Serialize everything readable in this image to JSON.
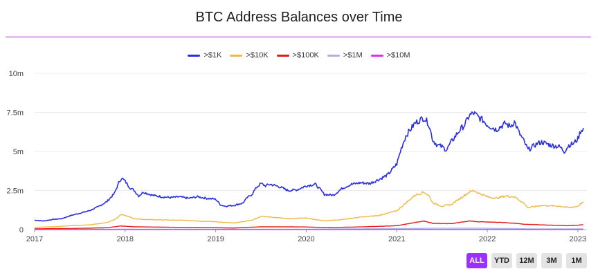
{
  "header": {
    "title": "BTC Address Balances over Time"
  },
  "legend": {
    "items": [
      {
        "label": ">$1K",
        "color": "#2a2ee0"
      },
      {
        "label": ">$10K",
        "color": "#f0b84a"
      },
      {
        "label": ">$100K",
        "color": "#e01b1b"
      },
      {
        "label": ">$1M",
        "color": "#b3aee8"
      },
      {
        "label": ">$10M",
        "color": "#d633e6"
      }
    ]
  },
  "range_buttons": {
    "items": [
      {
        "label": "ALL",
        "active": true
      },
      {
        "label": "YTD",
        "active": false
      },
      {
        "label": "12M",
        "active": false
      },
      {
        "label": "3M",
        "active": false
      },
      {
        "label": "1M",
        "active": false
      }
    ]
  },
  "chart_data": {
    "type": "line",
    "title": "BTC Address Balances over Time",
    "xlabel": "",
    "ylabel": "",
    "x_range": [
      2017.0,
      2023.1
    ],
    "x_ticks": [
      {
        "value": 2017,
        "label": "2017"
      },
      {
        "value": 2018,
        "label": "2018"
      },
      {
        "value": 2019,
        "label": "2019"
      },
      {
        "value": 2020,
        "label": "2020"
      },
      {
        "value": 2021,
        "label": "2021"
      },
      {
        "value": 2022,
        "label": "2022"
      },
      {
        "value": 2023,
        "label": "2023"
      }
    ],
    "ylim": [
      0,
      10000000
    ],
    "y_ticks": [
      {
        "value": 0,
        "label": "0"
      },
      {
        "value": 2500000,
        "label": "2.5m"
      },
      {
        "value": 5000000,
        "label": "5m"
      },
      {
        "value": 7500000,
        "label": "7.5m"
      },
      {
        "value": 10000000,
        "label": "10m"
      }
    ],
    "grid": "horizontal",
    "legend_position": "top",
    "series": [
      {
        "name": ">$1K",
        "color": "#2a2ee0",
        "points": [
          [
            2017.0,
            600000
          ],
          [
            2017.1,
            550000
          ],
          [
            2017.2,
            650000
          ],
          [
            2017.3,
            700000
          ],
          [
            2017.4,
            900000
          ],
          [
            2017.5,
            1050000
          ],
          [
            2017.6,
            1200000
          ],
          [
            2017.7,
            1450000
          ],
          [
            2017.8,
            1800000
          ],
          [
            2017.88,
            2300000
          ],
          [
            2017.93,
            3000000
          ],
          [
            2017.96,
            3300000
          ],
          [
            2018.0,
            3100000
          ],
          [
            2018.05,
            2700000
          ],
          [
            2018.1,
            2500000
          ],
          [
            2018.15,
            2150000
          ],
          [
            2018.2,
            2400000
          ],
          [
            2018.3,
            2200000
          ],
          [
            2018.4,
            2100000
          ],
          [
            2018.5,
            2050000
          ],
          [
            2018.6,
            2100000
          ],
          [
            2018.7,
            2000000
          ],
          [
            2018.8,
            2100000
          ],
          [
            2018.9,
            2000000
          ],
          [
            2019.0,
            1950000
          ],
          [
            2019.05,
            1600000
          ],
          [
            2019.1,
            1500000
          ],
          [
            2019.2,
            1550000
          ],
          [
            2019.3,
            1700000
          ],
          [
            2019.35,
            2050000
          ],
          [
            2019.4,
            2250000
          ],
          [
            2019.45,
            2700000
          ],
          [
            2019.5,
            2950000
          ],
          [
            2019.55,
            2800000
          ],
          [
            2019.6,
            2900000
          ],
          [
            2019.7,
            2750000
          ],
          [
            2019.8,
            2500000
          ],
          [
            2019.9,
            2550000
          ],
          [
            2020.0,
            2800000
          ],
          [
            2020.1,
            2900000
          ],
          [
            2020.15,
            2600000
          ],
          [
            2020.2,
            2250000
          ],
          [
            2020.3,
            2200000
          ],
          [
            2020.4,
            2650000
          ],
          [
            2020.5,
            2900000
          ],
          [
            2020.6,
            3000000
          ],
          [
            2020.7,
            2950000
          ],
          [
            2020.8,
            3200000
          ],
          [
            2020.9,
            3500000
          ],
          [
            2021.0,
            4200000
          ],
          [
            2021.05,
            5200000
          ],
          [
            2021.1,
            6000000
          ],
          [
            2021.15,
            6400000
          ],
          [
            2021.2,
            6800000
          ],
          [
            2021.25,
            7000000
          ],
          [
            2021.3,
            7150000
          ],
          [
            2021.35,
            6800000
          ],
          [
            2021.4,
            5700000
          ],
          [
            2021.45,
            5400000
          ],
          [
            2021.5,
            5300000
          ],
          [
            2021.55,
            5100000
          ],
          [
            2021.6,
            5600000
          ],
          [
            2021.65,
            6000000
          ],
          [
            2021.7,
            6400000
          ],
          [
            2021.75,
            6700000
          ],
          [
            2021.8,
            7300000
          ],
          [
            2021.85,
            7450000
          ],
          [
            2021.9,
            7200000
          ],
          [
            2021.95,
            7000000
          ],
          [
            2022.0,
            6700000
          ],
          [
            2022.1,
            6400000
          ],
          [
            2022.2,
            6800000
          ],
          [
            2022.25,
            6600000
          ],
          [
            2022.3,
            6900000
          ],
          [
            2022.35,
            6200000
          ],
          [
            2022.4,
            5700000
          ],
          [
            2022.45,
            5100000
          ],
          [
            2022.5,
            5300000
          ],
          [
            2022.55,
            5500000
          ],
          [
            2022.6,
            5600000
          ],
          [
            2022.7,
            5400000
          ],
          [
            2022.8,
            5300000
          ],
          [
            2022.85,
            5000000
          ],
          [
            2022.9,
            5400000
          ],
          [
            2022.95,
            5500000
          ],
          [
            2023.0,
            5800000
          ],
          [
            2023.03,
            6300000
          ],
          [
            2023.06,
            6500000
          ]
        ]
      },
      {
        "name": ">$10K",
        "color": "#f0b84a",
        "points": [
          [
            2017.0,
            150000
          ],
          [
            2017.2,
            180000
          ],
          [
            2017.4,
            250000
          ],
          [
            2017.6,
            300000
          ],
          [
            2017.8,
            450000
          ],
          [
            2017.9,
            700000
          ],
          [
            2017.95,
            950000
          ],
          [
            2018.0,
            900000
          ],
          [
            2018.1,
            700000
          ],
          [
            2018.2,
            650000
          ],
          [
            2018.4,
            620000
          ],
          [
            2018.6,
            600000
          ],
          [
            2018.8,
            550000
          ],
          [
            2019.0,
            500000
          ],
          [
            2019.2,
            420000
          ],
          [
            2019.4,
            600000
          ],
          [
            2019.5,
            850000
          ],
          [
            2019.6,
            800000
          ],
          [
            2019.8,
            700000
          ],
          [
            2020.0,
            750000
          ],
          [
            2020.2,
            550000
          ],
          [
            2020.4,
            650000
          ],
          [
            2020.6,
            800000
          ],
          [
            2020.8,
            900000
          ],
          [
            2021.0,
            1200000
          ],
          [
            2021.1,
            1700000
          ],
          [
            2021.2,
            2200000
          ],
          [
            2021.3,
            2400000
          ],
          [
            2021.35,
            2200000
          ],
          [
            2021.4,
            1700000
          ],
          [
            2021.5,
            1500000
          ],
          [
            2021.6,
            1600000
          ],
          [
            2021.7,
            2000000
          ],
          [
            2021.8,
            2400000
          ],
          [
            2021.85,
            2500000
          ],
          [
            2021.9,
            2350000
          ],
          [
            2022.0,
            2100000
          ],
          [
            2022.1,
            2000000
          ],
          [
            2022.2,
            2150000
          ],
          [
            2022.3,
            2100000
          ],
          [
            2022.4,
            1700000
          ],
          [
            2022.45,
            1400000
          ],
          [
            2022.6,
            1550000
          ],
          [
            2022.8,
            1500000
          ],
          [
            2022.9,
            1400000
          ],
          [
            2023.0,
            1500000
          ],
          [
            2023.04,
            1700000
          ],
          [
            2023.06,
            1780000
          ]
        ]
      },
      {
        "name": ">$100K",
        "color": "#e01b1b",
        "points": [
          [
            2017.0,
            50000
          ],
          [
            2017.4,
            70000
          ],
          [
            2017.8,
            120000
          ],
          [
            2017.95,
            230000
          ],
          [
            2018.1,
            180000
          ],
          [
            2018.5,
            150000
          ],
          [
            2019.0,
            120000
          ],
          [
            2019.2,
            100000
          ],
          [
            2019.5,
            180000
          ],
          [
            2020.0,
            170000
          ],
          [
            2020.2,
            130000
          ],
          [
            2020.6,
            170000
          ],
          [
            2021.0,
            250000
          ],
          [
            2021.2,
            450000
          ],
          [
            2021.3,
            550000
          ],
          [
            2021.4,
            400000
          ],
          [
            2021.6,
            380000
          ],
          [
            2021.8,
            550000
          ],
          [
            2021.9,
            500000
          ],
          [
            2022.2,
            450000
          ],
          [
            2022.4,
            350000
          ],
          [
            2022.6,
            300000
          ],
          [
            2022.9,
            250000
          ],
          [
            2023.0,
            280000
          ],
          [
            2023.06,
            320000
          ]
        ]
      },
      {
        "name": ">$1M",
        "color": "#b3aee8",
        "points": [
          [
            2017.0,
            8000
          ],
          [
            2017.95,
            30000
          ],
          [
            2018.5,
            25000
          ],
          [
            2019.0,
            20000
          ],
          [
            2020.0,
            25000
          ],
          [
            2021.3,
            80000
          ],
          [
            2021.85,
            90000
          ],
          [
            2022.5,
            50000
          ],
          [
            2023.06,
            45000
          ]
        ]
      },
      {
        "name": ">$10M",
        "color": "#d633e6",
        "points": [
          [
            2017.0,
            1000
          ],
          [
            2018.0,
            4000
          ],
          [
            2019.0,
            3000
          ],
          [
            2020.0,
            3000
          ],
          [
            2021.3,
            9000
          ],
          [
            2021.85,
            10000
          ],
          [
            2022.5,
            6000
          ],
          [
            2023.06,
            5000
          ]
        ]
      }
    ]
  }
}
